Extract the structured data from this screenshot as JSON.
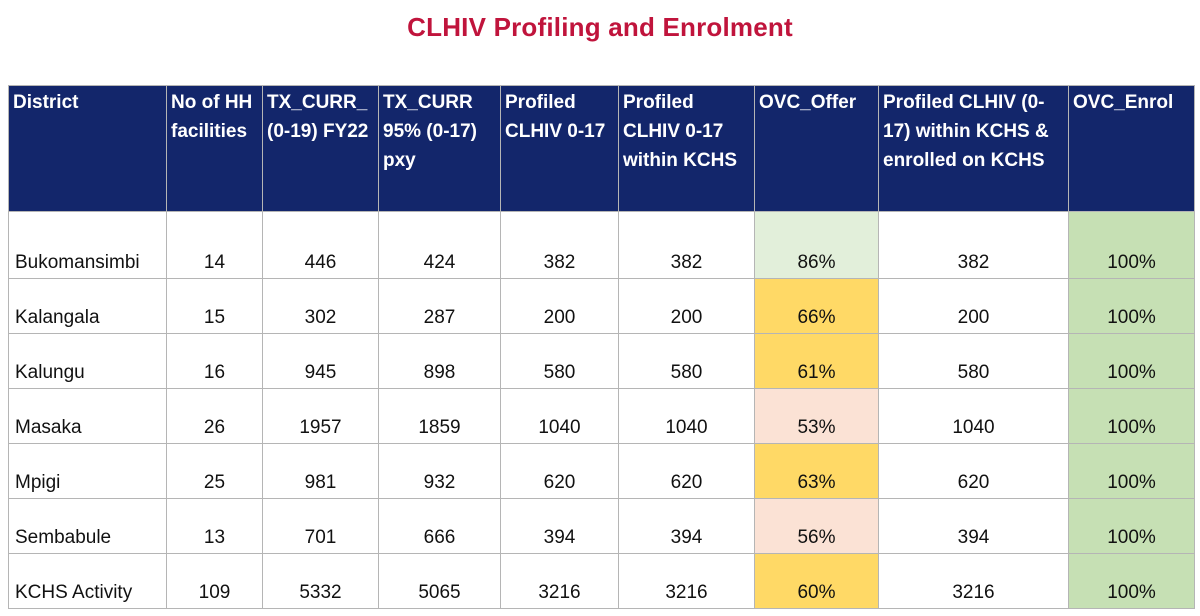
{
  "title": "CLHIV Profiling and Enrolment",
  "colors": {
    "title": "#c0143c",
    "header_bg": "#13266b",
    "header_text": "#ffffff",
    "offer_high": "#e2efda",
    "offer_mid": "#ffd966",
    "offer_low": "#fbe2d5",
    "enrol_full": "#c6e0b4"
  },
  "table": {
    "headers": [
      "District",
      "No of HH facilities",
      "TX_CURR_ (0-19) FY22",
      "TX_CURR 95% (0-17) pxy",
      "Profiled CLHIV 0-17",
      "Profiled CLHIV 0-17 within KCHS",
      "OVC_Offer",
      "Profiled CLHIV (0-17) within KCHS & enrolled on KCHS",
      "OVC_Enrol"
    ],
    "rows": [
      {
        "district": "Bukomansimbi",
        "hh": "14",
        "tx_curr": "446",
        "tx_curr95": "424",
        "profiled": "382",
        "profiled_kchs": "382",
        "ovc_offer": "86%",
        "offer_band": "high",
        "enrolled": "382",
        "ovc_enrol": "100%"
      },
      {
        "district": "Kalangala",
        "hh": "15",
        "tx_curr": "302",
        "tx_curr95": "287",
        "profiled": "200",
        "profiled_kchs": "200",
        "ovc_offer": "66%",
        "offer_band": "mid",
        "enrolled": "200",
        "ovc_enrol": "100%"
      },
      {
        "district": "Kalungu",
        "hh": "16",
        "tx_curr": "945",
        "tx_curr95": "898",
        "profiled": "580",
        "profiled_kchs": "580",
        "ovc_offer": "61%",
        "offer_band": "mid",
        "enrolled": "580",
        "ovc_enrol": "100%"
      },
      {
        "district": "Masaka",
        "hh": "26",
        "tx_curr": "1957",
        "tx_curr95": "1859",
        "profiled": "1040",
        "profiled_kchs": "1040",
        "ovc_offer": "53%",
        "offer_band": "low",
        "enrolled": "1040",
        "ovc_enrol": "100%"
      },
      {
        "district": "Mpigi",
        "hh": "25",
        "tx_curr": "981",
        "tx_curr95": "932",
        "profiled": "620",
        "profiled_kchs": "620",
        "ovc_offer": "63%",
        "offer_band": "mid",
        "enrolled": "620",
        "ovc_enrol": "100%"
      },
      {
        "district": "Sembabule",
        "hh": "13",
        "tx_curr": "701",
        "tx_curr95": "666",
        "profiled": "394",
        "profiled_kchs": "394",
        "ovc_offer": "56%",
        "offer_band": "low",
        "enrolled": "394",
        "ovc_enrol": "100%"
      },
      {
        "district": "KCHS Activity",
        "hh": "109",
        "tx_curr": "5332",
        "tx_curr95": "5065",
        "profiled": "3216",
        "profiled_kchs": "3216",
        "ovc_offer": "60%",
        "offer_band": "mid",
        "enrolled": "3216",
        "ovc_enrol": "100%"
      }
    ]
  }
}
